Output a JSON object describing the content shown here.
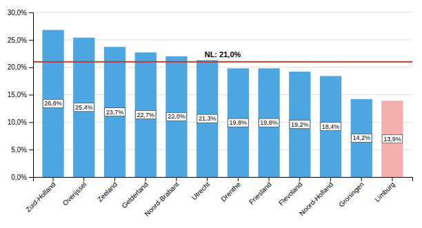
{
  "chart_data": {
    "type": "bar",
    "categories": [
      "Zuid-Holland",
      "Overijssel",
      "Zeeland",
      "Gelderland",
      "Noord-Brabant",
      "Utrecht",
      "Drenthe",
      "Friesland",
      "Flevoland",
      "Noord-Holland",
      "Groningen",
      "Limburg"
    ],
    "values": [
      26.8,
      25.4,
      23.7,
      22.7,
      22.0,
      21.3,
      19.8,
      19.8,
      19.2,
      18.4,
      14.2,
      13.9
    ],
    "value_labels": [
      "26,8%",
      "25,4%",
      "23,7%",
      "22,7%",
      "22,0%",
      "21,3%",
      "19,8%",
      "19,8%",
      "19,2%",
      "18,4%",
      "14,2%",
      "13,9%"
    ],
    "colors": [
      "#4DA6E0",
      "#4DA6E0",
      "#4DA6E0",
      "#4DA6E0",
      "#4DA6E0",
      "#4DA6E0",
      "#4DA6E0",
      "#4DA6E0",
      "#4DA6E0",
      "#4DA6E0",
      "#4DA6E0",
      "#F4AFAF"
    ],
    "data_labels": true,
    "reference_line": {
      "value": 21.0,
      "label": "NL: 21,0%",
      "color": "#C0392B"
    },
    "ylim": [
      0,
      30
    ],
    "yticks": [
      {
        "value": 0,
        "label": "0,0%"
      },
      {
        "value": 5,
        "label": "5,0%"
      },
      {
        "value": 10,
        "label": "10,0%"
      },
      {
        "value": 15,
        "label": "15,0%"
      },
      {
        "value": 20,
        "label": "20,0%"
      },
      {
        "value": 25,
        "label": "25,0%"
      },
      {
        "value": 30,
        "label": "30,0%"
      }
    ],
    "grid": true
  }
}
